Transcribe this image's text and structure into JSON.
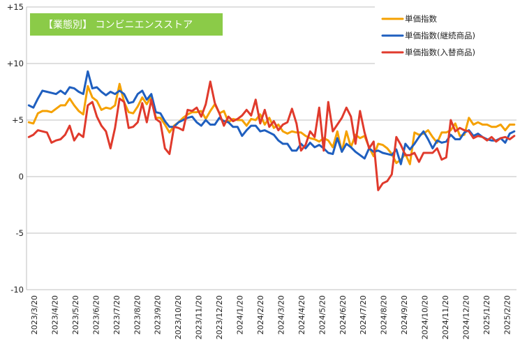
{
  "chart_data": {
    "type": "line",
    "title": "【業態別】 コンビニエンスストア",
    "title_bg_color": "#8BCB48",
    "ylim": [
      -10,
      15
    ],
    "yticks": [
      15,
      10,
      5,
      0,
      -5,
      -10
    ],
    "ytick_labels": [
      "+15",
      "+10",
      "+5",
      "0",
      "-5",
      "-10"
    ],
    "xlabels": [
      "2023/3/20",
      "2023/4/20",
      "2023/5/20",
      "2023/6/20",
      "2023/7/20",
      "2023/8/20",
      "2023/9/20",
      "2023/10/20",
      "2023/11/20",
      "2023/12/20",
      "2024/1/20",
      "2024/2/20",
      "2024/3/20",
      "2024/4/20",
      "2024/5/20",
      "2024/6/20",
      "2024/7/20",
      "2024/8/20",
      "2024/9/20",
      "2024/10/20",
      "2024/11/20",
      "2024/12/20",
      "2025/1/20",
      "2025/2/20"
    ],
    "grid": "horizontal",
    "legend_position": "top-right",
    "series": [
      {
        "name": "単価指数",
        "color": "#F5A100",
        "values": [
          4.8,
          4.7,
          5.6,
          5.8,
          5.8,
          5.7,
          6.0,
          6.3,
          6.3,
          6.9,
          6.3,
          5.8,
          5.5,
          8.0,
          7.0,
          6.7,
          5.9,
          6.1,
          6.0,
          6.3,
          8.2,
          6.6,
          5.7,
          5.6,
          6.2,
          7.0,
          6.4,
          7.1,
          5.2,
          5.2,
          4.6,
          3.9,
          4.5,
          4.8,
          5.2,
          5.5,
          5.7,
          5.7,
          5.8,
          5.1,
          5.8,
          6.4,
          5.6,
          5.8,
          4.8,
          5.1,
          5.0,
          5.0,
          4.5,
          5.1,
          5.0,
          5.5,
          4.6,
          5.2,
          4.3,
          4.6,
          4.0,
          3.8,
          4.0,
          3.9,
          3.9,
          3.6,
          3.4,
          3.3,
          3.1,
          3.4,
          3.2,
          2.6,
          4.0,
          2.2,
          4.0,
          2.6,
          3.7,
          3.4,
          3.6,
          2.6,
          1.8,
          2.9,
          2.8,
          2.5,
          2.0,
          1.2,
          1.5,
          2.0,
          1.1,
          3.9,
          3.7,
          3.8,
          4.1,
          3.5,
          3.0,
          3.9,
          3.9,
          4.1,
          4.7,
          3.6,
          3.7,
          5.2,
          4.6,
          4.8,
          4.6,
          4.6,
          4.4,
          4.4,
          4.6,
          4.1,
          4.6,
          4.6
        ]
      },
      {
        "name": "単価指数(継続商品)",
        "color": "#1F5FBF",
        "values": [
          6.3,
          6.1,
          6.9,
          7.6,
          7.5,
          7.4,
          7.3,
          7.6,
          7.3,
          7.9,
          7.8,
          7.5,
          7.3,
          9.3,
          7.8,
          7.9,
          7.5,
          7.2,
          7.5,
          7.3,
          7.6,
          7.3,
          6.5,
          6.6,
          7.3,
          7.6,
          6.8,
          7.3,
          5.7,
          5.6,
          4.9,
          4.4,
          4.4,
          4.8,
          5.0,
          5.2,
          5.3,
          4.8,
          4.5,
          5.0,
          4.6,
          4.6,
          5.2,
          4.9,
          4.8,
          4.4,
          4.4,
          3.6,
          4.1,
          4.5,
          4.5,
          4.0,
          4.1,
          3.9,
          3.7,
          3.2,
          2.9,
          2.9,
          2.3,
          2.3,
          2.9,
          2.5,
          3.0,
          2.6,
          2.8,
          2.5,
          2.1,
          2.0,
          3.4,
          2.2,
          2.9,
          2.6,
          2.2,
          1.9,
          1.6,
          2.5,
          2.2,
          2.3,
          2.1,
          2.0,
          1.9,
          2.4,
          1.1,
          2.9,
          2.4,
          2.9,
          3.5,
          4.0,
          3.3,
          2.5,
          3.2,
          3.0,
          3.1,
          3.7,
          3.3,
          3.3,
          3.9,
          4.1,
          3.6,
          3.8,
          3.5,
          3.3,
          3.2,
          3.2,
          3.4,
          3.0,
          3.8,
          4.0
        ]
      },
      {
        "name": "単価指数(入替商品)",
        "color": "#E03A2C",
        "values": [
          3.5,
          3.7,
          4.1,
          4.0,
          3.9,
          3.0,
          3.2,
          3.3,
          3.7,
          4.5,
          3.2,
          3.8,
          3.5,
          6.3,
          6.6,
          5.3,
          4.5,
          4.0,
          2.5,
          4.3,
          6.9,
          6.6,
          4.3,
          4.4,
          4.8,
          6.5,
          4.8,
          6.8,
          5.1,
          4.8,
          2.5,
          2.0,
          4.4,
          4.3,
          4.1,
          5.9,
          5.8,
          6.1,
          5.3,
          6.4,
          8.4,
          6.5,
          5.6,
          4.5,
          5.3,
          4.9,
          5.1,
          5.4,
          5.9,
          5.4,
          6.8,
          4.7,
          5.9,
          4.4,
          4.9,
          4.1,
          4.6,
          4.8,
          6.0,
          4.7,
          2.3,
          2.8,
          4.0,
          3.5,
          6.1,
          2.3,
          6.6,
          4.0,
          4.6,
          5.2,
          6.1,
          5.3,
          2.9,
          5.8,
          3.9,
          2.5,
          3.1,
          -1.2,
          -0.6,
          -0.4,
          0.2,
          3.5,
          2.8,
          1.9,
          1.9,
          2.1,
          1.3,
          2.1,
          2.1,
          2.1,
          2.5,
          1.5,
          1.7,
          5.0,
          4.0,
          4.3,
          4.1,
          4.0,
          3.4,
          3.6,
          3.5,
          3.2,
          3.5,
          3.1,
          3.4,
          3.5,
          3.3,
          3.6
        ]
      }
    ]
  }
}
